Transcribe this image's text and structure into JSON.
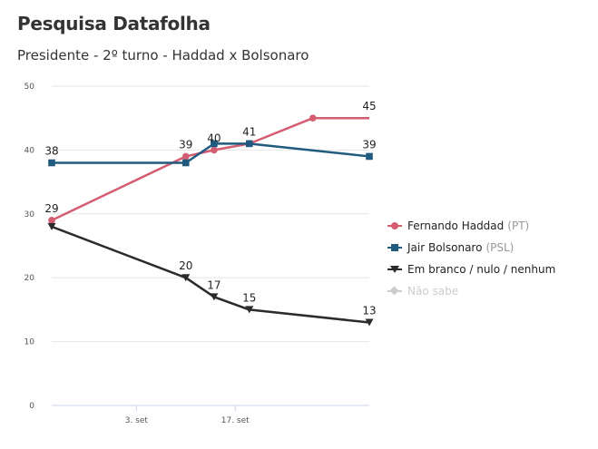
{
  "header": {
    "title": "Pesquisa Datafolha",
    "subtitle": "Presidente - 2º turno - Haddad x Bolsonaro"
  },
  "chart_data": {
    "type": "line",
    "title": "Pesquisa Datafolha",
    "subtitle": "Presidente - 2º turno - Haddad x Bolsonaro",
    "xlabel": "",
    "ylabel": "",
    "x_axis_type": "date",
    "x_tick_labels": [
      {
        "date": "2018-09-03",
        "label": "3. set"
      },
      {
        "date": "2018-09-17",
        "label": "17. set"
      }
    ],
    "xlim": [
      "2018-08-22",
      "2018-10-06"
    ],
    "ylim": [
      0,
      50
    ],
    "y_ticks": [
      0,
      10,
      20,
      30,
      40,
      50
    ],
    "grid": true,
    "legend_position": "right",
    "x": [
      "2018-08-22",
      "2018-09-10",
      "2018-09-14",
      "2018-09-19",
      "2018-10-06"
    ],
    "series": [
      {
        "name": "Fernando Haddad",
        "party": "(PT)",
        "color": "#d45d72",
        "marker": "circle",
        "x": [
          "2018-08-22",
          "2018-09-10",
          "2018-09-14",
          "2018-09-19",
          "2018-09-28",
          "2018-10-06"
        ],
        "values": [
          29,
          39,
          40,
          41,
          45,
          45
        ],
        "labels": [
          29,
          39,
          40,
          41,
          45
        ]
      },
      {
        "name": "Jair Bolsonaro",
        "party": "(PSL)",
        "color": "#205a7e",
        "marker": "square",
        "x": [
          "2018-08-22",
          "2018-09-10",
          "2018-09-14",
          "2018-09-19",
          "2018-10-06"
        ],
        "values": [
          38,
          38,
          41,
          41,
          39
        ]
      },
      {
        "name": "Em branco / nulo / nenhum",
        "party": "",
        "color": "#2b2b2b",
        "marker": "triangle-down",
        "x": [
          "2018-08-22",
          "2018-09-10",
          "2018-09-14",
          "2018-09-19",
          "2018-10-06"
        ],
        "values": [
          28,
          20,
          17,
          15,
          13
        ]
      },
      {
        "name": "Não sabe",
        "party": "",
        "color": "#cccccc",
        "marker": "diamond",
        "hidden": true,
        "x": [],
        "values": []
      }
    ],
    "data_labels": [
      {
        "x": "2018-08-22",
        "y": 38,
        "text": "38"
      },
      {
        "x": "2018-08-22",
        "y": 29,
        "text": "29"
      },
      {
        "x": "2018-09-10",
        "y": 39,
        "text": "39"
      },
      {
        "x": "2018-09-14",
        "y": 40,
        "text": "40"
      },
      {
        "x": "2018-09-19",
        "y": 41,
        "text": "41"
      },
      {
        "x": "2018-10-06",
        "y": 45,
        "text": "45"
      },
      {
        "x": "2018-10-06",
        "y": 39,
        "text": "39"
      },
      {
        "x": "2018-09-10",
        "y": 20,
        "text": "20"
      },
      {
        "x": "2018-09-14",
        "y": 17,
        "text": "17"
      },
      {
        "x": "2018-09-19",
        "y": 15,
        "text": "15"
      },
      {
        "x": "2018-10-06",
        "y": 13,
        "text": "13"
      }
    ]
  }
}
